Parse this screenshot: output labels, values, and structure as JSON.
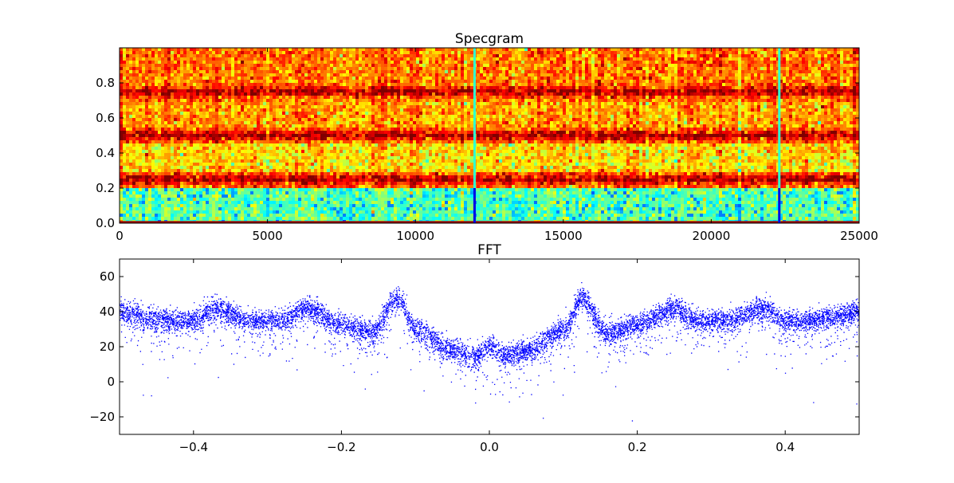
{
  "chart_data": [
    {
      "type": "heatmap",
      "title": "Specgram",
      "xlim": [
        0,
        25000
      ],
      "ylim": [
        0,
        1.0
      ],
      "xticks": [
        "0",
        "5000",
        "10000",
        "15000",
        "20000",
        "25000"
      ],
      "yticks": [
        "0.0",
        "0.2",
        "0.4",
        "0.6",
        "0.8"
      ],
      "colormap": "jet",
      "features": {
        "horizontal_bands_y": [
          0.0,
          0.25,
          0.5,
          0.75
        ],
        "low_intensity_region_y": [
          0.0,
          0.2
        ],
        "vertical_lines_x": [
          12000,
          22300
        ]
      }
    },
    {
      "type": "scatter",
      "title": "FFT",
      "xlim": [
        -0.5,
        0.5
      ],
      "ylim": [
        -30,
        70
      ],
      "xticks": [
        "−0.4",
        "−0.2",
        "0.0",
        "0.2",
        "0.4"
      ],
      "yticks": [
        "−20",
        "0",
        "20",
        "40",
        "60"
      ],
      "color": "#0000ff",
      "envelope": {
        "x": [
          -0.5,
          -0.45,
          -0.4,
          -0.37,
          -0.32,
          -0.28,
          -0.25,
          -0.2,
          -0.16,
          -0.125,
          -0.1,
          -0.05,
          -0.02,
          0.0,
          0.02,
          0.05,
          0.1,
          0.125,
          0.16,
          0.2,
          0.25,
          0.28,
          0.32,
          0.37,
          0.4,
          0.45,
          0.5
        ],
        "y": [
          40,
          36,
          35,
          42,
          35,
          35,
          42,
          33,
          28,
          48,
          30,
          18,
          15,
          20,
          15,
          18,
          30,
          48,
          28,
          33,
          42,
          35,
          35,
          42,
          35,
          36,
          40
        ]
      }
    }
  ]
}
